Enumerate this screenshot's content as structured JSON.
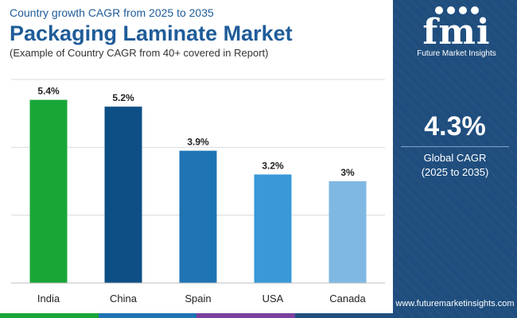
{
  "header": {
    "subtitle_top": "Country growth CAGR from 2025 to 2035",
    "title": "Packaging Laminate Market",
    "subtitle_bottom": "(Example of Country CAGR from 40+ covered in Report)"
  },
  "chart_data": {
    "type": "bar",
    "title": "Packaging Laminate Market",
    "categories": [
      "India",
      "China",
      "Spain",
      "USA",
      "Canada"
    ],
    "values": [
      5.4,
      5.2,
      3.9,
      3.2,
      3.0
    ],
    "value_labels": [
      "5.4%",
      "5.2%",
      "3.9%",
      "3.2%",
      "3%"
    ],
    "bar_colors": [
      "#19a637",
      "#0d4f85",
      "#1f74b4",
      "#3898d8",
      "#7fb9e3"
    ],
    "xlabel": "",
    "ylabel": "",
    "ylim": [
      0,
      6
    ],
    "grid": true
  },
  "side_panel": {
    "logo_mark": "fmi",
    "logo_text": "Future Market Insights",
    "stat_value": "4.3%",
    "stat_label_line1": "Global CAGR",
    "stat_label_line2": "(2025 to 2035)",
    "website": "www.futuremarketinsights.com",
    "background_color": "#1f4e7e"
  },
  "bottom_bar_colors": [
    "#19a637",
    "#1f74b4",
    "#7b3f9e",
    "#1f4e7e"
  ]
}
